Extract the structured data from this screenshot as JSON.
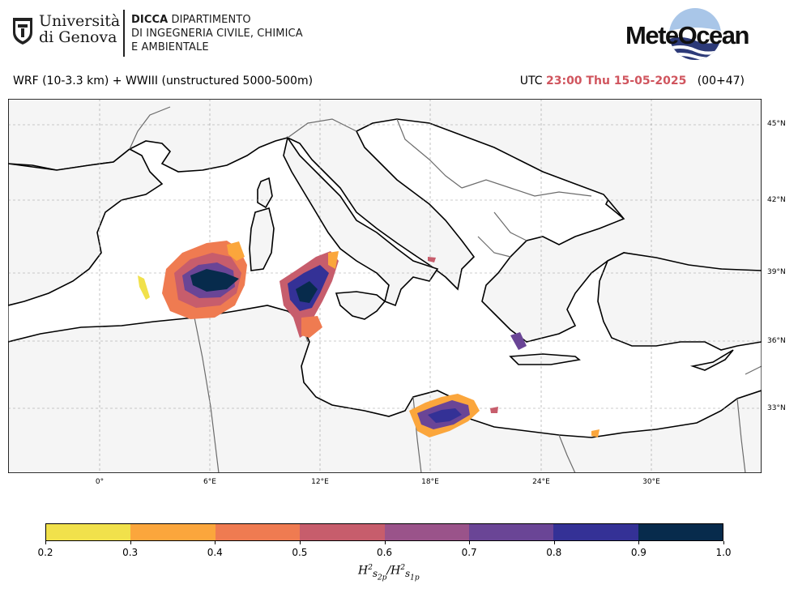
{
  "header": {
    "university_line1": "Università",
    "university_line2": "di Genova",
    "dept_bold": "DICCA",
    "dept_line1": "DIPARTIMENTO",
    "dept_line2": "DI INGEGNERIA CIVILE, CHIMICA",
    "dept_line3": "E AMBIENTALE",
    "meteo_logo": "MeteOcean",
    "brand_color": "#1e2a5c"
  },
  "model_label": "WRF (10-3.3 km) + WWIII (unstructured 5000-500m)",
  "time": {
    "prefix": "UTC",
    "value": "23:00 Thu 15-05-2025",
    "lead": "(00+47)",
    "highlight_color": "#d0555e"
  },
  "map": {
    "lat_labels": [
      "45°N",
      "42°N",
      "39°N",
      "36°N",
      "33°N"
    ],
    "lon_labels": [
      "0°",
      "6°E",
      "12°E",
      "18°E",
      "24°E",
      "30°E"
    ],
    "land_color": "#f5f5f5",
    "sea_color": "#ffffff"
  },
  "colorbar": {
    "ticks": [
      "0.2",
      "0.3",
      "0.4",
      "0.5",
      "0.6",
      "0.7",
      "0.8",
      "0.9",
      "1.0"
    ],
    "colors": [
      "#f1e14b",
      "#fba63c",
      "#ef7b51",
      "#c75d6c",
      "#9a538a",
      "#6a4596",
      "#343196",
      "#072b4c"
    ],
    "label": "H²s2p/H²s1p"
  }
}
